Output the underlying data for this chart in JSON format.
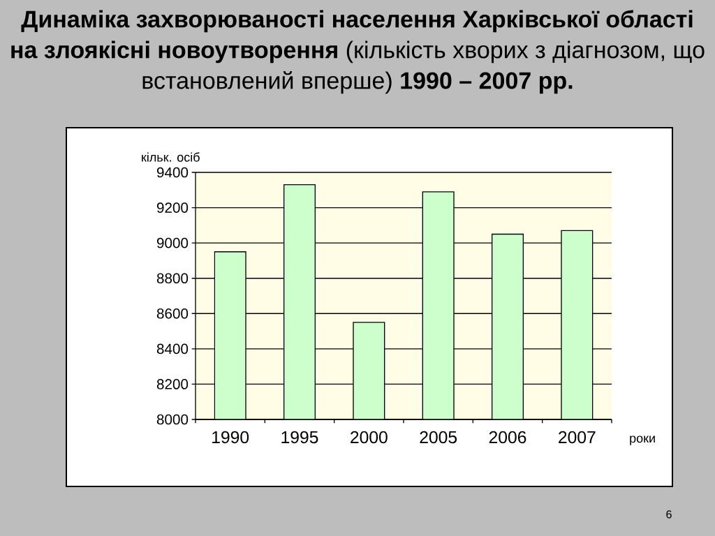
{
  "chart_data": {
    "type": "bar",
    "title": "**Динаміка захворюваності населення Харківської області на злоякісні новоутворення** (кількість хворих з діагнозом, що встановлений вперше) **1990 – 2007 рр.**",
    "xlabel": "роки",
    "ylabel": "кільк. осіб",
    "categories": [
      "1990",
      "1995",
      "2000",
      "2005",
      "2006",
      "2007"
    ],
    "values": [
      8950,
      9330,
      8550,
      9290,
      9050,
      9070
    ],
    "color": "#ccffcc",
    "ylim": [
      8000,
      9400
    ],
    "yticks": [
      8000,
      8200,
      8400,
      8600,
      8800,
      9000,
      9200,
      9400
    ],
    "grid": "y",
    "annotations": [
      "6"
    ]
  }
}
